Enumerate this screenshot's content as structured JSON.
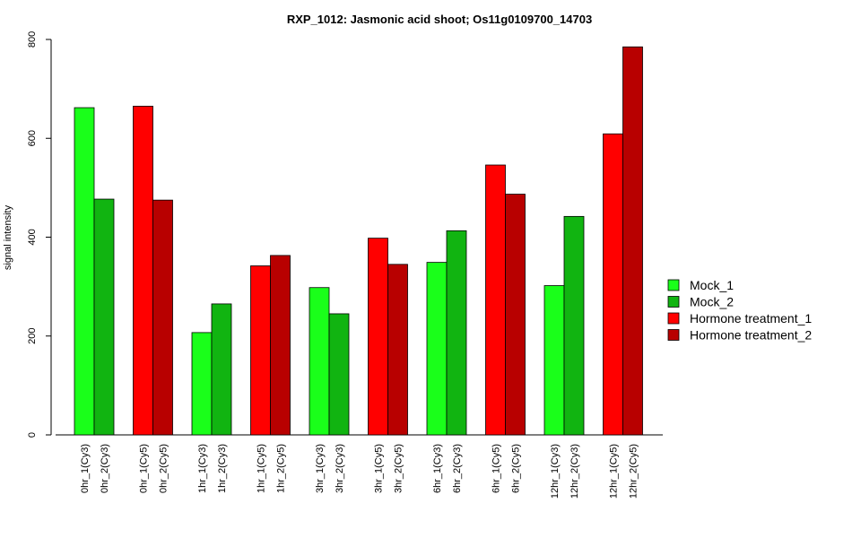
{
  "chart_data": {
    "type": "bar",
    "title": "RXP_1012: Jasmonic acid shoot; Os11g0109700_14703",
    "xlabel": "",
    "ylabel": "signal intensity",
    "ylim": [
      0,
      800
    ],
    "yticks": [
      0,
      200,
      400,
      600,
      800
    ],
    "grid": false,
    "legend_position": "right",
    "series": [
      {
        "name": "Mock_1",
        "color": "#1aff1a"
      },
      {
        "name": "Mock_2",
        "color": "#11b411"
      },
      {
        "name": "Hormone treatment_1",
        "color": "#ff0000"
      },
      {
        "name": "Hormone treatment_2",
        "color": "#b80000"
      }
    ],
    "bars": [
      {
        "label": "0hr_1(Cy3)",
        "value": 662,
        "series": 0
      },
      {
        "label": "0hr_2(Cy3)",
        "value": 477,
        "series": 1
      },
      {
        "label": "0hr_1(Cy5)",
        "value": 665,
        "series": 2
      },
      {
        "label": "0hr_2(Cy5)",
        "value": 475,
        "series": 3
      },
      {
        "label": "1hr_1(Cy3)",
        "value": 207,
        "series": 0
      },
      {
        "label": "1hr_2(Cy3)",
        "value": 265,
        "series": 1
      },
      {
        "label": "1hr_1(Cy5)",
        "value": 342,
        "series": 2
      },
      {
        "label": "1hr_2(Cy5)",
        "value": 363,
        "series": 3
      },
      {
        "label": "3hr_1(Cy3)",
        "value": 298,
        "series": 0
      },
      {
        "label": "3hr_2(Cy3)",
        "value": 245,
        "series": 1
      },
      {
        "label": "3hr_1(Cy5)",
        "value": 398,
        "series": 2
      },
      {
        "label": "3hr_2(Cy5)",
        "value": 345,
        "series": 3
      },
      {
        "label": "6hr_1(Cy3)",
        "value": 349,
        "series": 0
      },
      {
        "label": "6hr_2(Cy3)",
        "value": 413,
        "series": 1
      },
      {
        "label": "6hr_1(Cy5)",
        "value": 546,
        "series": 2
      },
      {
        "label": "6hr_2(Cy5)",
        "value": 487,
        "series": 3
      },
      {
        "label": "12hr_1(Cy3)",
        "value": 302,
        "series": 0
      },
      {
        "label": "12hr_2(Cy3)",
        "value": 442,
        "series": 1
      },
      {
        "label": "12hr_1(Cy5)",
        "value": 609,
        "series": 2
      },
      {
        "label": "12hr_2(Cy5)",
        "value": 785,
        "series": 3
      }
    ]
  }
}
